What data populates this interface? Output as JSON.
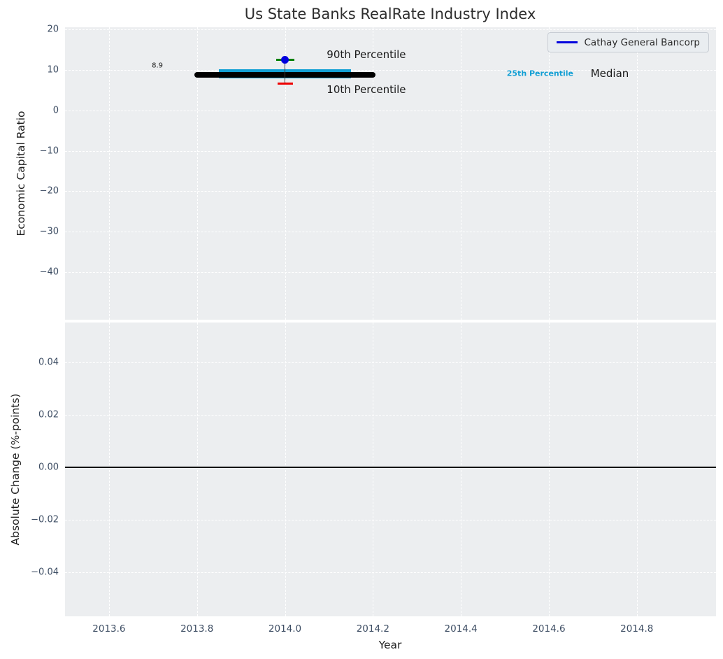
{
  "title": "Us State Banks RealRate Industry Index",
  "legend": {
    "label": "Cathay General Bancorp"
  },
  "colors": {
    "figure_bg": "#ffffff",
    "plot_bg": "#eceef0",
    "grid": "#ffffff",
    "tick_label": "#3d4d63",
    "text": "#1a1a1a",
    "median_line": "#000000",
    "percentile25_line": "#129fd4",
    "company_point": "#0000dd",
    "cap_90": "#008000",
    "cap_10": "#ee0000",
    "errorbar_line": "#3a3a3a",
    "zero_line": "#000000"
  },
  "chart_data": [
    {
      "panel": "economic_capital_ratio",
      "type": "line",
      "title": "Us State Banks RealRate Industry Index",
      "ylabel": "Economic Capital Ratio",
      "xlim": [
        2013.5,
        2014.98
      ],
      "ylim": [
        -51.8,
        20.6
      ],
      "grid": true,
      "legend_position": "upper right",
      "yticks": {
        "values": [
          20,
          10,
          0,
          -10,
          -20,
          -30,
          -40
        ],
        "labels": [
          "20",
          "10",
          "0",
          "−10",
          "−20",
          "−30",
          "−40"
        ]
      },
      "xticks": {
        "values": [
          2013.6,
          2013.8,
          2014.0,
          2014.2,
          2014.4,
          2014.6,
          2014.8
        ],
        "labels": []
      },
      "median_line": {
        "name": "Median",
        "value": 8.9,
        "x_start": 2013.8,
        "x_end": 2014.2
      },
      "percentile25_line": {
        "name": "25th Percentile",
        "value": 9.0,
        "x_start": 2013.85,
        "x_end": 2014.15
      },
      "company_point": {
        "name": "Cathay General Bancorp",
        "x": 2014.0,
        "y": 12.6
      },
      "errorbar": {
        "x": 2014.0,
        "p90": 12.6,
        "p10": 6.7,
        "p90_label": "90th Percentile",
        "p10_label": "10th Percentile"
      },
      "annotations": [
        {
          "role": "median-value-label",
          "text": "8.9",
          "x": 2013.71,
          "y": 11.0,
          "ha": "center"
        },
        {
          "role": "p90-label",
          "text": "90th Percentile",
          "x": 2014.095,
          "y": 13.9,
          "ha": "left"
        },
        {
          "role": "p10-label",
          "text": "10th Percentile",
          "x": 2014.095,
          "y": 5.2,
          "ha": "left"
        },
        {
          "role": "p25-inline-label",
          "text": "25th Percentile",
          "x": 2014.58,
          "y": 9.1,
          "ha": "center"
        },
        {
          "role": "median-inline-label",
          "text": "Median",
          "x": 2014.695,
          "y": 9.1,
          "ha": "left"
        }
      ]
    },
    {
      "panel": "absolute_change",
      "type": "line",
      "ylabel": "Absolute Change (%-points)",
      "xlabel": "Year",
      "xlim": [
        2013.5,
        2014.98
      ],
      "ylim": [
        -0.0568,
        0.0552
      ],
      "grid": true,
      "yticks": {
        "values": [
          0.04,
          0.02,
          0,
          -0.02,
          -0.04
        ],
        "labels": [
          "0.04",
          "0.02",
          "0.00",
          "−0.02",
          "−0.04"
        ]
      },
      "xticks": {
        "values": [
          2013.6,
          2013.8,
          2014.0,
          2014.2,
          2014.4,
          2014.6,
          2014.8
        ],
        "labels": [
          "2013.6",
          "2013.8",
          "2014.0",
          "2014.2",
          "2014.4",
          "2014.6",
          "2014.8"
        ]
      },
      "zero_line": 0.0
    }
  ]
}
